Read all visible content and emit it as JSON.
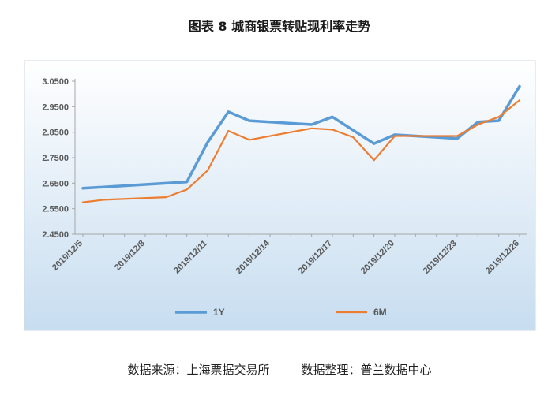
{
  "title": "图表 8  城商银票转贴现利率走势",
  "source_left": "数据来源：上海票据交易所",
  "source_right": "数据整理：普兰数据中心",
  "chart_data": {
    "type": "line",
    "title": "图表 8  城商银票转贴现利率走势",
    "xlabel": "",
    "ylabel": "",
    "x": [
      "2019/12/5",
      "2019/12/6",
      "2019/12/7",
      "2019/12/8",
      "2019/12/9",
      "2019/12/10",
      "2019/12/11",
      "2019/12/12",
      "2019/12/13",
      "2019/12/14",
      "2019/12/15",
      "2019/12/16",
      "2019/12/17",
      "2019/12/18",
      "2019/12/19",
      "2019/12/20",
      "2019/12/21",
      "2019/12/22",
      "2019/12/23",
      "2019/12/24",
      "2019/12/25",
      "2019/12/26"
    ],
    "x_tick_labels": [
      "2019/12/5",
      "2019/12/8",
      "2019/12/11",
      "2019/12/14",
      "2019/12/17",
      "2019/12/20",
      "2019/12/23",
      "2019/12/26"
    ],
    "y_tick_labels": [
      "2.4500",
      "2.5500",
      "2.6500",
      "2.7500",
      "2.8500",
      "2.9500",
      "3.0500"
    ],
    "ylim": [
      2.45,
      3.05
    ],
    "grid": false,
    "legend": "bottom",
    "series": [
      {
        "name": "1Y",
        "color": "#5b9bd5",
        "values": [
          2.63,
          null,
          null,
          null,
          null,
          2.655,
          2.81,
          2.93,
          2.895,
          null,
          null,
          2.88,
          2.91,
          null,
          2.805,
          2.84,
          null,
          2.83,
          2.825,
          2.89,
          2.895,
          3.03
        ]
      },
      {
        "name": "6M",
        "color": "#ed7d31",
        "values": [
          2.575,
          2.585,
          null,
          null,
          2.595,
          2.625,
          2.7,
          2.855,
          2.82,
          null,
          null,
          2.865,
          2.86,
          2.83,
          2.74,
          2.835,
          null,
          2.835,
          2.835,
          2.88,
          2.91,
          2.975
        ]
      }
    ]
  }
}
